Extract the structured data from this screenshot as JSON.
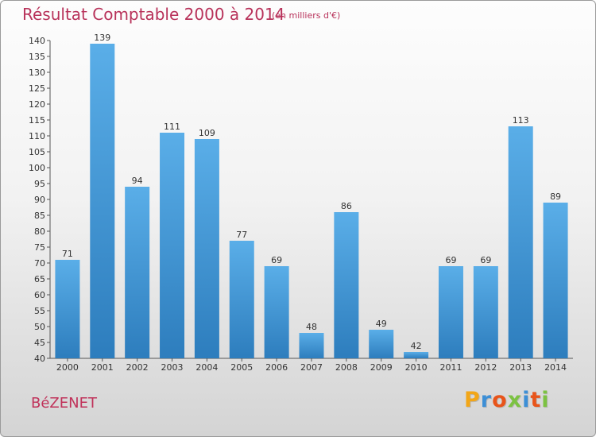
{
  "chart_data": {
    "type": "bar",
    "title": "Résultat Comptable 2000 à 2014",
    "subtitle": "(en milliers d'€)",
    "categories": [
      "2000",
      "2001",
      "2002",
      "2003",
      "2004",
      "2005",
      "2006",
      "2007",
      "2008",
      "2009",
      "2010",
      "2011",
      "2012",
      "2013",
      "2014"
    ],
    "values": [
      71,
      139,
      94,
      111,
      109,
      77,
      69,
      48,
      86,
      49,
      42,
      69,
      69,
      113,
      89
    ],
    "xlabel": "",
    "ylabel": "",
    "ylim": [
      40,
      140
    ],
    "ytick_step": 5,
    "grid": false,
    "bar_color": "#3e94d6"
  },
  "location": {
    "name": "BéZENET"
  },
  "brand": {
    "logo_text": "Proxiti"
  }
}
